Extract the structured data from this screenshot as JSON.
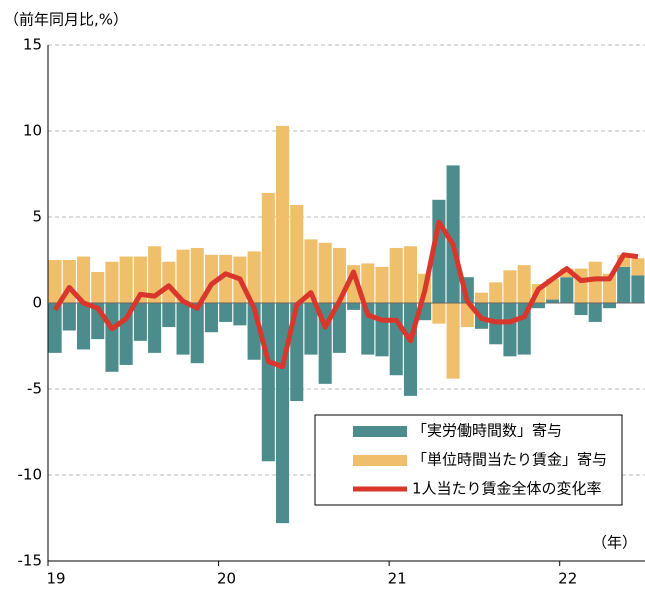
{
  "chart_data": {
    "type": "bar_line",
    "ylabel": "（前年同月比,%）",
    "xlabel": "（年）",
    "categories": [
      "19",
      null,
      null,
      null,
      null,
      null,
      null,
      null,
      null,
      null,
      null,
      null,
      "20",
      null,
      null,
      null,
      null,
      null,
      null,
      null,
      null,
      null,
      null,
      null,
      "21",
      null,
      null,
      null,
      null,
      null,
      null,
      null,
      null,
      null,
      null,
      null,
      "22",
      null,
      null,
      null,
      null,
      null
    ],
    "series": [
      {
        "name": "「実労働時間数」寄与",
        "type": "bar",
        "color": "#4d8c8c",
        "values": [
          -2.9,
          -1.6,
          -2.7,
          -2.1,
          -4.0,
          -3.6,
          -2.2,
          -2.9,
          -1.4,
          -3.0,
          -3.5,
          -1.7,
          -1.1,
          -1.3,
          -3.3,
          -9.2,
          -12.8,
          -5.7,
          -3.0,
          -4.7,
          -2.9,
          -0.4,
          -3.0,
          -3.1,
          -4.2,
          -5.4,
          -1.0,
          6.0,
          8.0,
          1.5,
          -1.5,
          -2.4,
          -3.1,
          -3.0,
          -0.3,
          0.2,
          1.5,
          -0.7,
          -1.1,
          -0.3,
          2.1,
          1.6
        ]
      },
      {
        "name": "「単位時間当たり賃金」寄与",
        "type": "bar",
        "color": "#f0bf6c",
        "values": [
          2.5,
          2.5,
          2.7,
          1.8,
          2.4,
          2.7,
          2.7,
          3.3,
          2.4,
          3.1,
          3.2,
          2.8,
          2.8,
          2.7,
          3.0,
          6.4,
          10.3,
          5.7,
          3.7,
          3.5,
          3.2,
          2.2,
          2.3,
          2.1,
          3.2,
          3.3,
          1.7,
          -1.2,
          -4.4,
          -1.4,
          0.6,
          1.2,
          1.9,
          2.2,
          1.1,
          1.2,
          0.5,
          2.0,
          2.4,
          1.7,
          0.7,
          1.0
        ]
      },
      {
        "name": "1人当たり賃金全体の変化率",
        "type": "line",
        "color": "#d9372b",
        "values": [
          -0.4,
          0.9,
          0.0,
          -0.3,
          -1.5,
          -0.9,
          0.5,
          0.4,
          1.0,
          0.1,
          -0.3,
          1.1,
          1.7,
          1.4,
          -0.3,
          -3.4,
          -3.7,
          -0.1,
          0.6,
          -1.4,
          0.1,
          1.8,
          -0.7,
          -1.0,
          -1.0,
          -2.2,
          0.7,
          4.7,
          3.4,
          0.1,
          -0.9,
          -1.1,
          -1.1,
          -0.8,
          0.8,
          1.4,
          2.0,
          1.3,
          1.4,
          1.4,
          2.8,
          2.7
        ]
      }
    ],
    "ylim": [
      -15,
      15
    ],
    "yticks": [
      -15,
      -10,
      -5,
      0,
      5,
      10,
      15
    ],
    "grid": true,
    "legend": "lower right"
  }
}
